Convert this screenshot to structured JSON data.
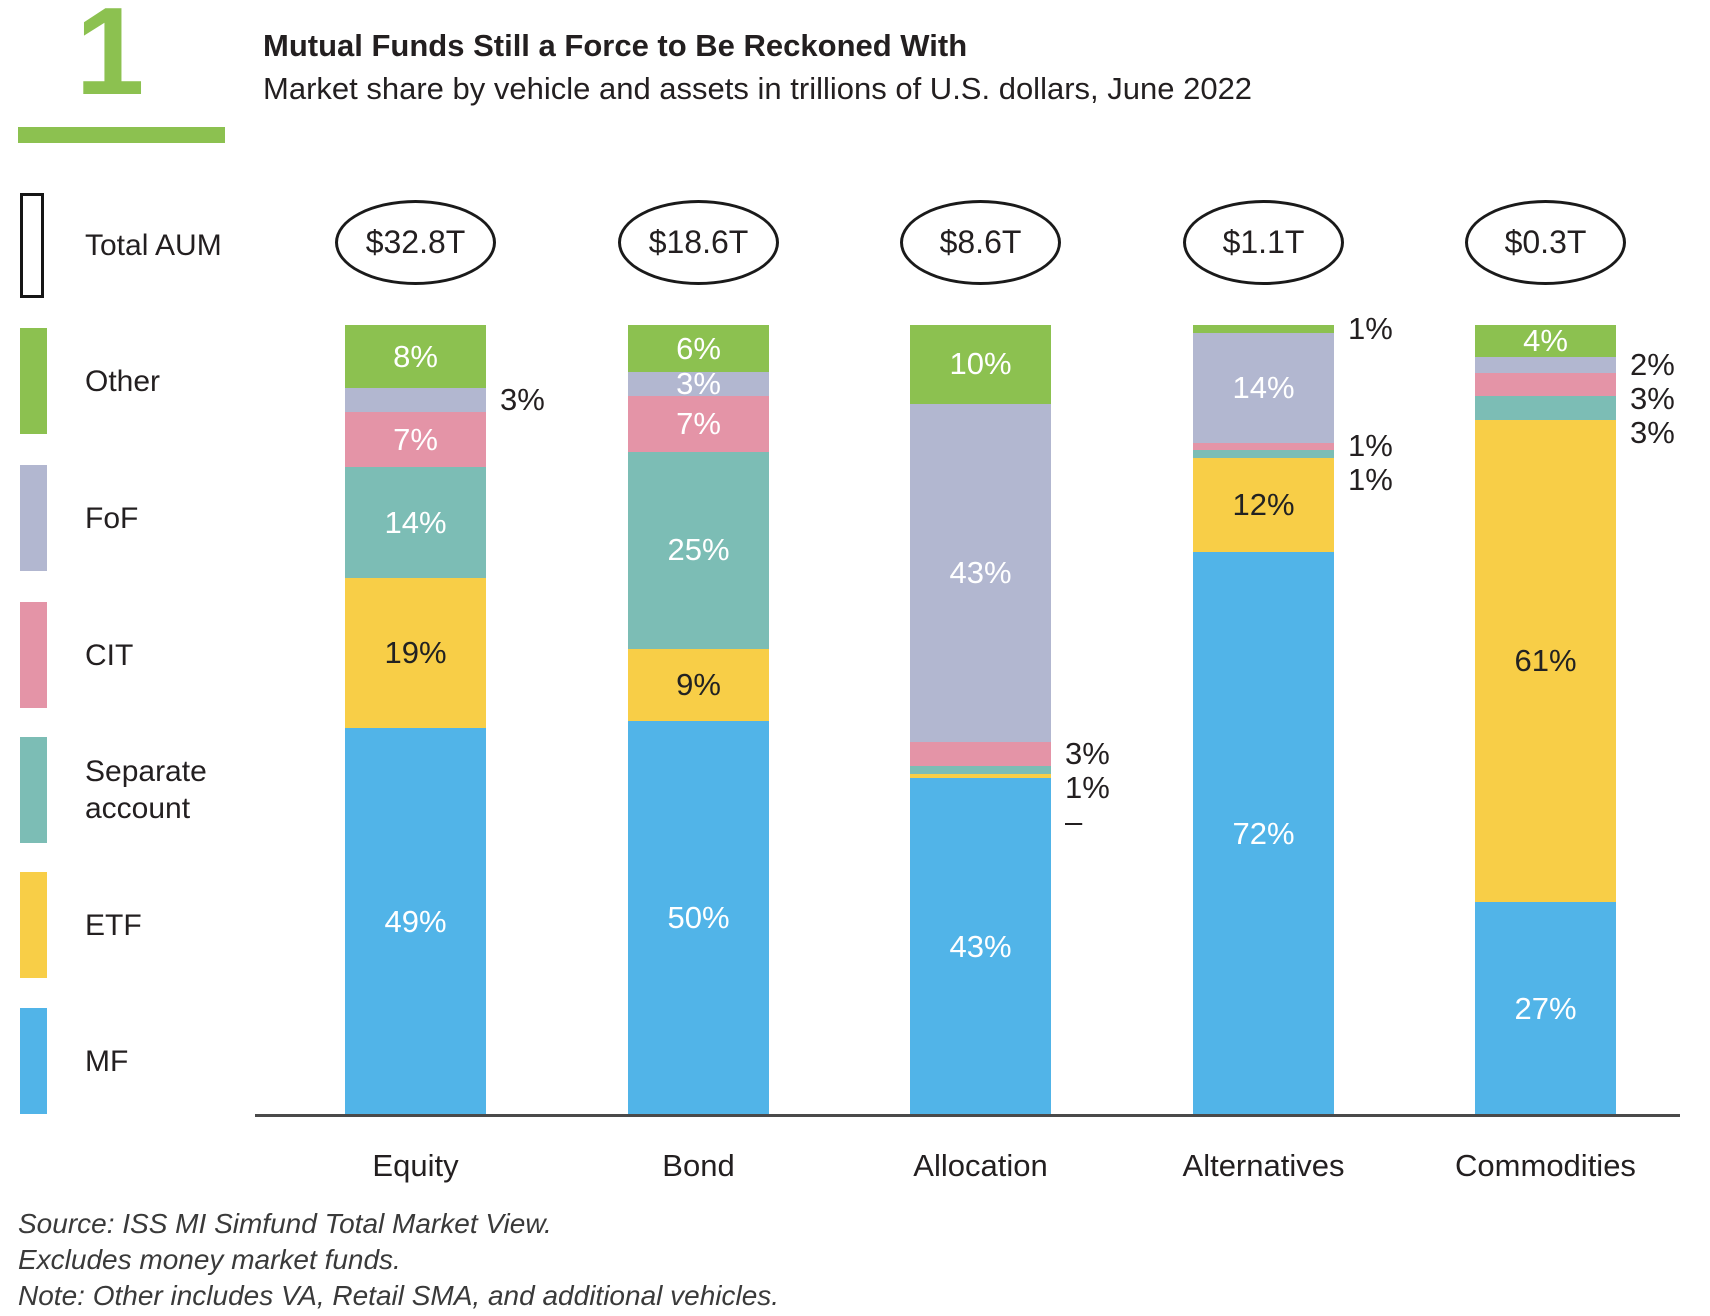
{
  "header": {
    "figure_number": "1",
    "title": "Mutual Funds Still a Force to Be Reckoned With",
    "subtitle": "Market share by vehicle and assets in trillions of U.S. dollars, June 2022"
  },
  "legend": {
    "total_aum_label": "Total AUM",
    "items": [
      {
        "id": "other",
        "label": "Other",
        "color": "#8CC150"
      },
      {
        "id": "fof",
        "label": "FoF",
        "color": "#B2B7D0"
      },
      {
        "id": "cit",
        "label": "CIT",
        "color": "#E494A7"
      },
      {
        "id": "separate-account",
        "label": "Separate account",
        "color": "#7CBDB5"
      },
      {
        "id": "etf",
        "label": "ETF",
        "color": "#F8CE47"
      },
      {
        "id": "mf",
        "label": "MF",
        "color": "#51B4E8"
      }
    ]
  },
  "chart_data": {
    "type": "bar",
    "stacked": true,
    "unit": "percent of category assets",
    "title": "Mutual Funds Still a Force to Be Reckoned With",
    "subtitle": "Market share by vehicle and assets in trillions of U.S. dollars, June 2022",
    "categories": [
      "Equity",
      "Bond",
      "Allocation",
      "Alternatives",
      "Commodities"
    ],
    "totals_aum": [
      "$32.8T",
      "$18.6T",
      "$8.6T",
      "$1.1T",
      "$0.3T"
    ],
    "legend_order_top_to_bottom": [
      "Other",
      "FoF",
      "CIT",
      "Separate account",
      "ETF",
      "MF"
    ],
    "stack_order_bottom_to_top": [
      "MF",
      "ETF",
      "Separate account",
      "CIT",
      "FoF",
      "Other"
    ],
    "series_styles": {
      "MF": {
        "color": "#51B4E8",
        "label_color": "#FFFFFF"
      },
      "ETF": {
        "color": "#F8CE47",
        "label_color": "#222222"
      },
      "Separate account": {
        "color": "#7CBDB5",
        "label_color": "#FFFFFF"
      },
      "CIT": {
        "color": "#E494A7",
        "label_color": "#FFFFFF"
      },
      "FoF": {
        "color": "#B2B7D0",
        "label_color": "#FFFFFF"
      },
      "Other": {
        "color": "#8CC150",
        "label_color": "#FFFFFF"
      }
    },
    "bars": [
      {
        "category": "Equity",
        "total_aum": "$32.8T",
        "segments": [
          {
            "series": "MF",
            "value": 49,
            "label": "49%",
            "placement": "inside"
          },
          {
            "series": "ETF",
            "value": 19,
            "label": "19%",
            "placement": "inside"
          },
          {
            "series": "Separate account",
            "value": 14,
            "label": "14%",
            "placement": "inside"
          },
          {
            "series": "CIT",
            "value": 7,
            "label": "7%",
            "placement": "inside"
          },
          {
            "series": "FoF",
            "value": 3,
            "label": "3%",
            "placement": "outside"
          },
          {
            "series": "Other",
            "value": 8,
            "label": "8%",
            "placement": "inside"
          }
        ]
      },
      {
        "category": "Bond",
        "total_aum": "$18.6T",
        "segments": [
          {
            "series": "MF",
            "value": 50,
            "label": "50%",
            "placement": "inside"
          },
          {
            "series": "ETF",
            "value": 9,
            "label": "9%",
            "placement": "inside"
          },
          {
            "series": "Separate account",
            "value": 25,
            "label": "25%",
            "placement": "inside"
          },
          {
            "series": "CIT",
            "value": 7,
            "label": "7%",
            "placement": "inside"
          },
          {
            "series": "FoF",
            "value": 3,
            "label": "3%",
            "placement": "inside"
          },
          {
            "series": "Other",
            "value": 6,
            "label": "6%",
            "placement": "inside"
          }
        ]
      },
      {
        "category": "Allocation",
        "total_aum": "$8.6T",
        "segments": [
          {
            "series": "MF",
            "value": 43,
            "label": "43%",
            "placement": "inside"
          },
          {
            "series": "ETF",
            "value": 0.5,
            "label": "–",
            "placement": "outside"
          },
          {
            "series": "Separate account",
            "value": 1,
            "label": "1%",
            "placement": "outside"
          },
          {
            "series": "CIT",
            "value": 3,
            "label": "3%",
            "placement": "outside"
          },
          {
            "series": "FoF",
            "value": 43,
            "label": "43%",
            "placement": "inside"
          },
          {
            "series": "Other",
            "value": 10,
            "label": "10%",
            "placement": "inside"
          }
        ]
      },
      {
        "category": "Alternatives",
        "total_aum": "$1.1T",
        "segments": [
          {
            "series": "MF",
            "value": 72,
            "label": "72%",
            "placement": "inside"
          },
          {
            "series": "ETF",
            "value": 12,
            "label": "12%",
            "placement": "inside"
          },
          {
            "series": "Separate account",
            "value": 1,
            "label": "1%",
            "placement": "outside"
          },
          {
            "series": "CIT",
            "value": 1,
            "label": "1%",
            "placement": "outside"
          },
          {
            "series": "FoF",
            "value": 14,
            "label": "14%",
            "placement": "inside"
          },
          {
            "series": "Other",
            "value": 1,
            "label": "1%",
            "placement": "outside"
          }
        ]
      },
      {
        "category": "Commodities",
        "total_aum": "$0.3T",
        "segments": [
          {
            "series": "MF",
            "value": 27,
            "label": "27%",
            "placement": "inside"
          },
          {
            "series": "ETF",
            "value": 61,
            "label": "61%",
            "placement": "inside"
          },
          {
            "series": "Separate account",
            "value": 3,
            "label": "3%",
            "placement": "outside"
          },
          {
            "series": "CIT",
            "value": 3,
            "label": "3%",
            "placement": "outside"
          },
          {
            "series": "FoF",
            "value": 2,
            "label": "2%",
            "placement": "outside"
          },
          {
            "series": "Other",
            "value": 4,
            "label": "4%",
            "placement": "inside"
          }
        ]
      }
    ]
  },
  "footer": {
    "lines": [
      "Source: ISS MI Simfund Total Market View.",
      "Excludes money market funds.",
      "Note: Other includes VA, Retail SMA, and additional vehicles."
    ]
  },
  "colors": {
    "accent_green": "#8CC150",
    "axis": "#4A4A4A",
    "text": "#231F20",
    "footer_text": "#3A3A3A"
  }
}
